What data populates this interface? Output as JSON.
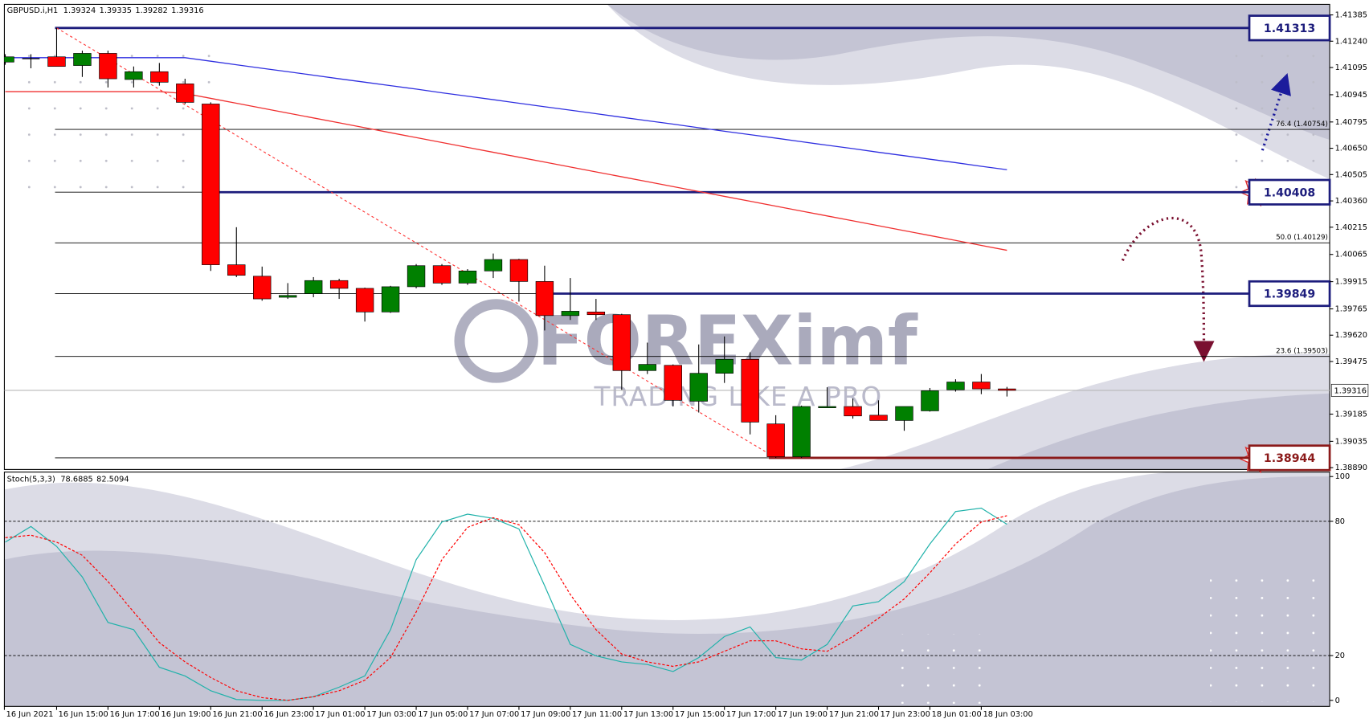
{
  "chart_data": [
    {
      "type": "candlestick",
      "symbol": "GBPUSD.i,H1",
      "open": [
        1.41125,
        1.41144,
        1.41154,
        1.41106,
        1.41173,
        1.41029,
        1.41072,
        1.41005,
        1.40894,
        1.40008,
        1.39945,
        1.39829,
        1.39849,
        1.39921,
        1.39878,
        1.39748,
        1.39887,
        1.40003,
        1.39907,
        1.39974,
        1.40037,
        1.39916,
        1.39728,
        1.39748,
        1.39733,
        1.39425,
        1.39454,
        1.39256,
        1.3941,
        1.39487,
        1.39131,
        1.3895,
        1.39223,
        1.39227,
        1.39179,
        1.3915,
        1.39203,
        1.39319,
        1.39362,
        1.39324
      ],
      "high": [
        1.41168,
        1.41168,
        1.41313,
        1.41188,
        1.41188,
        1.41101,
        1.4112,
        1.41033,
        1.40903,
        1.40215,
        1.39998,
        1.39907,
        1.3994,
        1.39931,
        1.39882,
        1.39892,
        1.40012,
        1.40012,
        1.39984,
        1.4007,
        1.40041,
        1.40003,
        1.39935,
        1.3982,
        1.39738,
        1.39579,
        1.39459,
        1.39569,
        1.39613,
        1.39526,
        1.39179,
        1.39232,
        1.39333,
        1.39271,
        1.39261,
        1.39227,
        1.39329,
        1.39377,
        1.39406,
        1.39335
      ],
      "low": [
        1.4111,
        1.41091,
        1.41101,
        1.41043,
        1.40985,
        1.40985,
        1.40995,
        1.40894,
        1.39974,
        1.3994,
        1.3981,
        1.3982,
        1.39829,
        1.3982,
        1.39695,
        1.39743,
        1.39878,
        1.39897,
        1.39897,
        1.39935,
        1.39805,
        1.39646,
        1.39704,
        1.39704,
        1.39319,
        1.39406,
        1.39227,
        1.39194,
        1.39357,
        1.39073,
        1.38944,
        1.38944,
        1.39223,
        1.3916,
        1.3915,
        1.39093,
        1.39199,
        1.39309,
        1.39295,
        1.39282
      ],
      "close": [
        1.41154,
        1.41144,
        1.41101,
        1.41173,
        1.41033,
        1.41072,
        1.41014,
        1.40903,
        1.40008,
        1.3995,
        1.3982,
        1.39839,
        1.39921,
        1.39878,
        1.39748,
        1.39887,
        1.40003,
        1.39907,
        1.39974,
        1.40037,
        1.39916,
        1.39728,
        1.39752,
        1.39733,
        1.39425,
        1.39459,
        1.39261,
        1.3941,
        1.39487,
        1.39141,
        1.3895,
        1.39227,
        1.39227,
        1.39175,
        1.3915,
        1.39227,
        1.39314,
        1.39362,
        1.39324,
        1.39316
      ],
      "up_color": "#008000",
      "down_color": "#ff0000",
      "series": [
        {
          "color": "#2f2fe0",
          "values": [
            1.41149,
            1.41149,
            1.41149,
            1.41149,
            1.41149,
            1.41149,
            1.41149,
            1.41149,
            1.4113,
            1.4111,
            1.41091,
            1.41072,
            1.41053,
            1.41033,
            1.41014,
            1.40995,
            1.40976,
            1.40956,
            1.40937,
            1.40918,
            1.40898,
            1.40879,
            1.4086,
            1.40841,
            1.40821,
            1.40802,
            1.40783,
            1.40763,
            1.40744,
            1.40725,
            1.40706,
            1.40686,
            1.40667,
            1.40648,
            1.40628,
            1.40609,
            1.4059,
            1.40571,
            1.40551,
            1.40532
          ]
        },
        {
          "color": "#f03030",
          "values": [
            1.40962,
            1.40962,
            1.40962,
            1.40962,
            1.40962,
            1.40962,
            1.40962,
            1.40952,
            1.40925,
            1.40898,
            1.40871,
            1.40844,
            1.40817,
            1.4079,
            1.40763,
            1.40736,
            1.40709,
            1.40682,
            1.40655,
            1.40628,
            1.40601,
            1.40574,
            1.40547,
            1.4052,
            1.40493,
            1.40466,
            1.40439,
            1.40412,
            1.40385,
            1.40358,
            1.40331,
            1.40304,
            1.40277,
            1.4025,
            1.40223,
            1.40196,
            1.40169,
            1.40142,
            1.40115,
            1.40088
          ]
        }
      ],
      "levels": [
        {
          "value": 1.41313,
          "color": "#1c1c7c"
        },
        {
          "value": 1.40408,
          "color": "#1c1c7c"
        },
        {
          "value": 1.39849,
          "color": "#1c1c7c"
        },
        {
          "value": 1.38944,
          "color": "#8b1a1a"
        }
      ],
      "fib": [
        {
          "value": 1.40754,
          "label": "76.4 (1.40754)"
        },
        {
          "value": 1.40129,
          "label": "50.0 (1.40129)"
        },
        {
          "value": 1.39503,
          "label": "23.6 (1.39503)"
        }
      ],
      "ylim": [
        1.3888,
        1.41443
      ],
      "yticks": [
        1.41385,
        {
          "value": 1.4124,
          "label": "1.41240"
        },
        1.41095,
        1.40945,
        1.40795,
        {
          "value": 1.4065,
          "label": "1.40650"
        },
        1.40505,
        {
          "value": 1.4036,
          "label": "1.40360"
        },
        1.40215,
        1.40065,
        1.39915,
        1.39765,
        {
          "value": 1.3962,
          "label": "1.39620"
        },
        1.39475,
        1.39185,
        1.39035,
        {
          "value": 1.3889,
          "label": "1.38890"
        }
      ]
    },
    {
      "type": "line",
      "title": "Stoch(5,3,3)",
      "categories": [
        "16 Jun 2021",
        null,
        "16 Jun 15:00",
        null,
        "16 Jun 17:00",
        null,
        "16 Jun 19:00",
        null,
        "16 Jun 21:00",
        null,
        "16 Jun 23:00",
        null,
        "17 Jun 01:00",
        null,
        "17 Jun 03:00",
        null,
        "17 Jun 05:00",
        null,
        "17 Jun 07:00",
        null,
        "17 Jun 09:00",
        null,
        "17 Jun 11:00",
        null,
        "17 Jun 13:00",
        null,
        "17 Jun 15:00",
        null,
        "17 Jun 17:00",
        null,
        "17 Jun 19:00",
        null,
        "17 Jun 21:00",
        null,
        "17 Jun 23:00",
        null,
        "18 Jun 01:00",
        null,
        "18 Jun 03:00",
        null
      ],
      "series": [
        {
          "color": "#20b2aa",
          "values": [
            70.7,
            77.7,
            68.8,
            55.1,
            34.8,
            31.6,
            14.8,
            10.9,
            4.3,
            0.4,
            0,
            0,
            1.6,
            5.9,
            10.9,
            31.6,
            62.9,
            79.7,
            83.2,
            81.3,
            76.6,
            51.2,
            25.0,
            19.9,
            17.2,
            16.0,
            12.9,
            19.1,
            28.5,
            32.8,
            19.1,
            18.0,
            25.0,
            42.2,
            44.1,
            53.1,
            69.9,
            84.4,
            85.9,
            78.6885
          ]
        },
        {
          "color": "#ff0000",
          "dashed": true,
          "values": [
            72.7,
            73.8,
            70.7,
            64.8,
            53.1,
            39.5,
            25.8,
            17.2,
            10.2,
            4.3,
            1.2,
            0,
            1.6,
            4.3,
            9.0,
            19.1,
            39.5,
            62.9,
            77.3,
            81.6,
            78.5,
            66.0,
            47.3,
            31.6,
            20.7,
            17.2,
            15.2,
            17.2,
            21.9,
            26.6,
            26.6,
            23.0,
            21.9,
            28.5,
            36.7,
            45.3,
            57.0,
            69.9,
            79.7,
            82.5094
          ]
        }
      ],
      "levels": [
        20,
        80
      ],
      "ylim": [
        -2.7,
        102
      ],
      "yticks": [
        0,
        20,
        80,
        100
      ]
    }
  ],
  "watermark": {
    "brand": "FOREXimf",
    "tagline": "TRADING LIKE A PRO"
  }
}
